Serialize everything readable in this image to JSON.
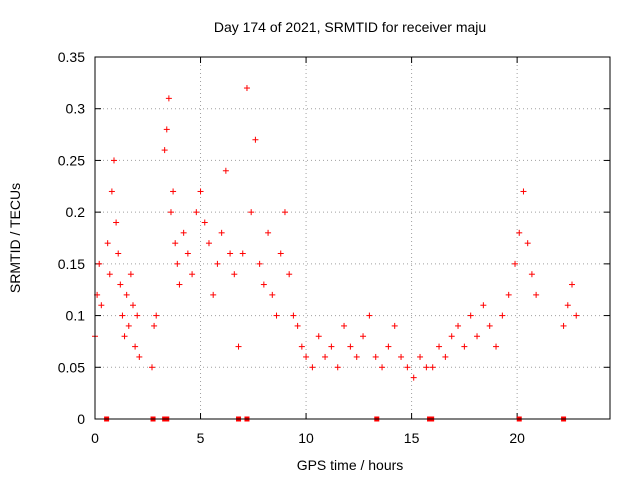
{
  "chart_data": {
    "type": "scatter",
    "title": "Day 174 of 2021, SRMTID for receiver maju",
    "xlabel": "GPS time / hours",
    "ylabel": "SRMTID / TECUs",
    "xlim": [
      0,
      24.4
    ],
    "ylim": [
      0,
      0.35
    ],
    "xticks": [
      0,
      5,
      10,
      15,
      20
    ],
    "xtick_labels": [
      "0",
      "5",
      "10",
      "15",
      "20"
    ],
    "yticks": [
      0,
      0.05,
      0.1,
      0.15,
      0.2,
      0.25,
      0.3,
      0.35
    ],
    "ytick_labels": [
      "0",
      "0.05",
      "0.1",
      "0.15",
      "0.2",
      "0.25",
      "0.3",
      "0.35"
    ],
    "grid": true,
    "marker": "plus",
    "color": "#ff0000",
    "gap_markers_x": [
      0.55,
      2.75,
      3.3,
      3.4,
      6.8,
      7.2,
      13.35,
      15.85,
      15.95,
      20.1,
      22.2
    ],
    "series": [
      {
        "name": "SRMTID",
        "x": [
          0.0,
          0.1,
          0.2,
          0.3,
          0.6,
          0.7,
          0.8,
          0.9,
          1.0,
          1.1,
          1.2,
          1.3,
          1.4,
          1.5,
          1.6,
          1.7,
          1.8,
          1.9,
          2.0,
          2.1,
          2.7,
          2.8,
          2.9,
          3.3,
          3.4,
          3.5,
          3.6,
          3.7,
          3.8,
          3.9,
          4.0,
          4.2,
          4.4,
          4.6,
          4.8,
          5.0,
          5.2,
          5.4,
          5.6,
          5.8,
          6.0,
          6.2,
          6.4,
          6.6,
          6.8,
          7.0,
          7.2,
          7.4,
          7.6,
          7.8,
          8.0,
          8.2,
          8.4,
          8.6,
          8.8,
          9.0,
          9.2,
          9.4,
          9.6,
          9.8,
          10.0,
          10.3,
          10.6,
          10.9,
          11.2,
          11.5,
          11.8,
          12.1,
          12.4,
          12.7,
          13.0,
          13.3,
          13.6,
          13.9,
          14.2,
          14.5,
          14.8,
          15.1,
          15.4,
          15.7,
          16.0,
          16.3,
          16.6,
          16.9,
          17.2,
          17.5,
          17.8,
          18.1,
          18.4,
          18.7,
          19.0,
          19.3,
          19.6,
          19.9,
          20.1,
          20.3,
          20.5,
          20.7,
          20.9,
          22.2,
          22.4,
          22.6,
          22.8
        ],
        "y": [
          0.08,
          0.12,
          0.15,
          0.11,
          0.17,
          0.14,
          0.22,
          0.25,
          0.19,
          0.16,
          0.13,
          0.1,
          0.08,
          0.12,
          0.09,
          0.14,
          0.11,
          0.07,
          0.1,
          0.06,
          0.05,
          0.09,
          0.1,
          0.26,
          0.28,
          0.31,
          0.2,
          0.22,
          0.17,
          0.15,
          0.13,
          0.18,
          0.16,
          0.14,
          0.2,
          0.22,
          0.19,
          0.17,
          0.12,
          0.15,
          0.18,
          0.24,
          0.16,
          0.14,
          0.07,
          0.16,
          0.32,
          0.2,
          0.27,
          0.15,
          0.13,
          0.18,
          0.12,
          0.1,
          0.16,
          0.2,
          0.14,
          0.1,
          0.09,
          0.07,
          0.06,
          0.05,
          0.08,
          0.06,
          0.07,
          0.05,
          0.09,
          0.07,
          0.06,
          0.08,
          0.1,
          0.06,
          0.05,
          0.07,
          0.09,
          0.06,
          0.05,
          0.04,
          0.06,
          0.05,
          0.05,
          0.07,
          0.06,
          0.08,
          0.09,
          0.07,
          0.1,
          0.08,
          0.11,
          0.09,
          0.07,
          0.1,
          0.12,
          0.15,
          0.18,
          0.22,
          0.17,
          0.14,
          0.12,
          0.09,
          0.11,
          0.13,
          0.1
        ]
      }
    ]
  }
}
